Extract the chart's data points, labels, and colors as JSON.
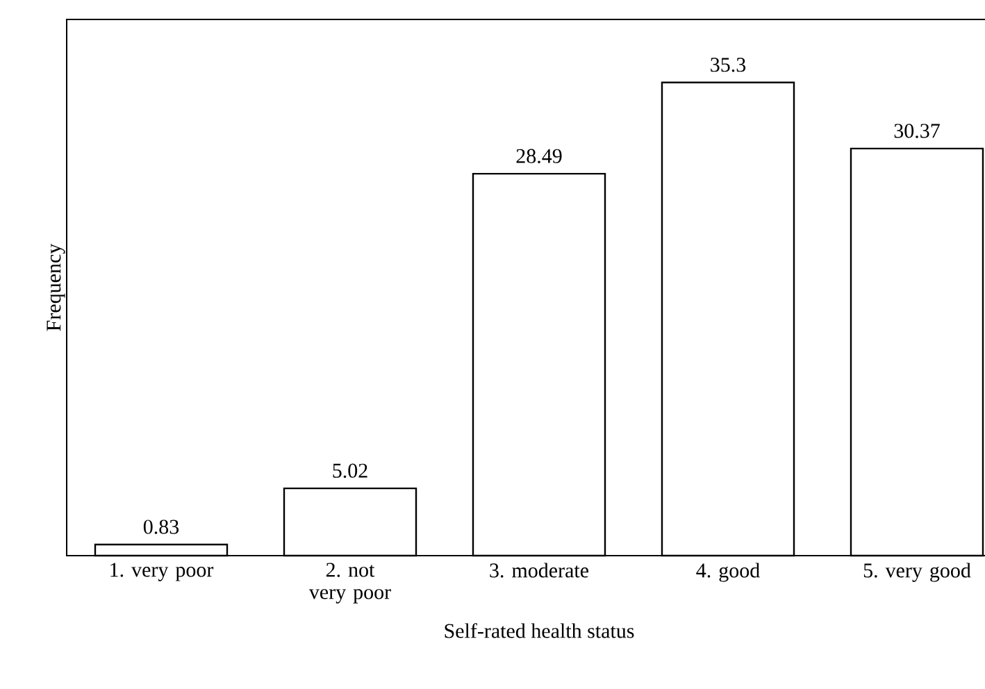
{
  "chart_data": {
    "type": "bar",
    "xlabel": "Self-rated health status",
    "ylabel": "Frequency",
    "categories": [
      "1. very poor",
      "2. not very poor",
      "3. moderate",
      "4. good",
      "5. very good"
    ],
    "values": [
      0.83,
      5.02,
      28.49,
      35.3,
      30.37
    ],
    "color": "#ffffff",
    "ylim": [
      0,
      40
    ],
    "data_labels": true,
    "tick_labels": "x"
  }
}
